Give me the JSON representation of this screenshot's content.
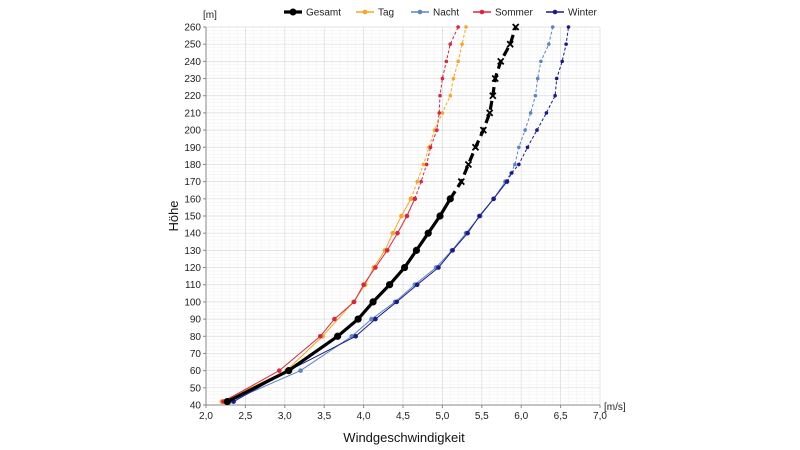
{
  "chart_data": {
    "type": "line",
    "xlabel": "Windgeschwindigkeit",
    "ylabel": "Höhe",
    "x_unit": "[m/s]",
    "y_unit": "[m]",
    "xlim": [
      2.0,
      7.0
    ],
    "ylim": [
      40,
      260
    ],
    "x_ticks": [
      "2,0",
      "2,5",
      "3,0",
      "3,5",
      "4,0",
      "4,5",
      "5,0",
      "5,5",
      "6,0",
      "6,5",
      "7,0"
    ],
    "y_ticks": [
      "40",
      "50",
      "60",
      "70",
      "80",
      "90",
      "100",
      "110",
      "120",
      "130",
      "140",
      "150",
      "160",
      "170",
      "180",
      "190",
      "200",
      "210",
      "220",
      "230",
      "240",
      "250",
      "260"
    ],
    "grid": true,
    "legend_position": "top",
    "series": [
      {
        "name": "Gesamt",
        "color": "#000000",
        "solid": [
          [
            2.27,
            42
          ],
          [
            3.05,
            60
          ],
          [
            3.67,
            80
          ],
          [
            3.93,
            90
          ],
          [
            4.12,
            100
          ],
          [
            4.33,
            110
          ],
          [
            4.52,
            120
          ],
          [
            4.67,
            130
          ],
          [
            4.82,
            140
          ],
          [
            4.97,
            150
          ],
          [
            5.1,
            160
          ]
        ],
        "dashed": [
          [
            5.1,
            160
          ],
          [
            5.24,
            170
          ],
          [
            5.33,
            180
          ],
          [
            5.42,
            190
          ],
          [
            5.52,
            200
          ],
          [
            5.6,
            210
          ],
          [
            5.64,
            220
          ],
          [
            5.67,
            230
          ],
          [
            5.74,
            240
          ],
          [
            5.86,
            250
          ],
          [
            5.93,
            260
          ]
        ]
      },
      {
        "name": "Tag",
        "color": "#f5a623",
        "solid": [
          [
            2.2,
            42
          ],
          [
            3.02,
            60
          ],
          [
            3.48,
            80
          ],
          [
            3.87,
            100
          ],
          [
            4.02,
            110
          ],
          [
            4.13,
            120
          ],
          [
            4.27,
            130
          ],
          [
            4.37,
            140
          ],
          [
            4.48,
            150
          ],
          [
            4.6,
            160
          ]
        ],
        "dashed": [
          [
            4.6,
            160
          ],
          [
            4.68,
            170
          ],
          [
            4.76,
            180
          ],
          [
            4.83,
            190
          ],
          [
            4.9,
            200
          ],
          [
            5.0,
            210
          ],
          [
            5.1,
            220
          ],
          [
            5.14,
            230
          ],
          [
            5.2,
            240
          ],
          [
            5.25,
            250
          ],
          [
            5.3,
            260
          ]
        ]
      },
      {
        "name": "Nacht",
        "color": "#5b84c4",
        "solid": [
          [
            2.3,
            42
          ],
          [
            3.2,
            60
          ],
          [
            3.85,
            80
          ],
          [
            4.1,
            90
          ],
          [
            4.4,
            100
          ],
          [
            4.65,
            110
          ],
          [
            4.92,
            120
          ],
          [
            5.12,
            130
          ],
          [
            5.3,
            140
          ],
          [
            5.48,
            150
          ],
          [
            5.65,
            160
          ],
          [
            5.8,
            170
          ]
        ],
        "dashed": [
          [
            5.8,
            170
          ],
          [
            5.87,
            175
          ],
          [
            5.92,
            180
          ],
          [
            5.97,
            190
          ],
          [
            6.05,
            200
          ],
          [
            6.12,
            210
          ],
          [
            6.18,
            220
          ],
          [
            6.21,
            230
          ],
          [
            6.25,
            240
          ],
          [
            6.35,
            250
          ],
          [
            6.4,
            260
          ]
        ]
      },
      {
        "name": "Sommer",
        "color": "#d7263d",
        "solid": [
          [
            2.22,
            42
          ],
          [
            2.93,
            60
          ],
          [
            3.45,
            80
          ],
          [
            3.63,
            90
          ],
          [
            3.88,
            100
          ],
          [
            4.0,
            110
          ],
          [
            4.15,
            120
          ],
          [
            4.3,
            130
          ],
          [
            4.43,
            140
          ],
          [
            4.55,
            150
          ],
          [
            4.65,
            160
          ]
        ],
        "dashed": [
          [
            4.65,
            160
          ],
          [
            4.73,
            170
          ],
          [
            4.8,
            180
          ],
          [
            4.85,
            190
          ],
          [
            4.93,
            200
          ],
          [
            4.96,
            210
          ],
          [
            4.97,
            220
          ],
          [
            5.0,
            230
          ],
          [
            5.05,
            240
          ],
          [
            5.1,
            250
          ],
          [
            5.2,
            260
          ]
        ]
      },
      {
        "name": "Winter",
        "color": "#1a1a8c",
        "solid": [
          [
            2.35,
            42
          ],
          [
            3.05,
            60
          ],
          [
            3.9,
            80
          ],
          [
            4.15,
            90
          ],
          [
            4.42,
            100
          ],
          [
            4.68,
            110
          ],
          [
            4.95,
            120
          ],
          [
            5.13,
            130
          ],
          [
            5.32,
            140
          ],
          [
            5.47,
            150
          ],
          [
            5.65,
            160
          ],
          [
            5.82,
            170
          ]
        ],
        "dashed": [
          [
            5.82,
            170
          ],
          [
            5.88,
            175
          ],
          [
            5.97,
            180
          ],
          [
            6.08,
            190
          ],
          [
            6.2,
            200
          ],
          [
            6.32,
            210
          ],
          [
            6.43,
            220
          ],
          [
            6.45,
            230
          ],
          [
            6.52,
            240
          ],
          [
            6.57,
            250
          ],
          [
            6.6,
            260
          ]
        ]
      }
    ]
  }
}
